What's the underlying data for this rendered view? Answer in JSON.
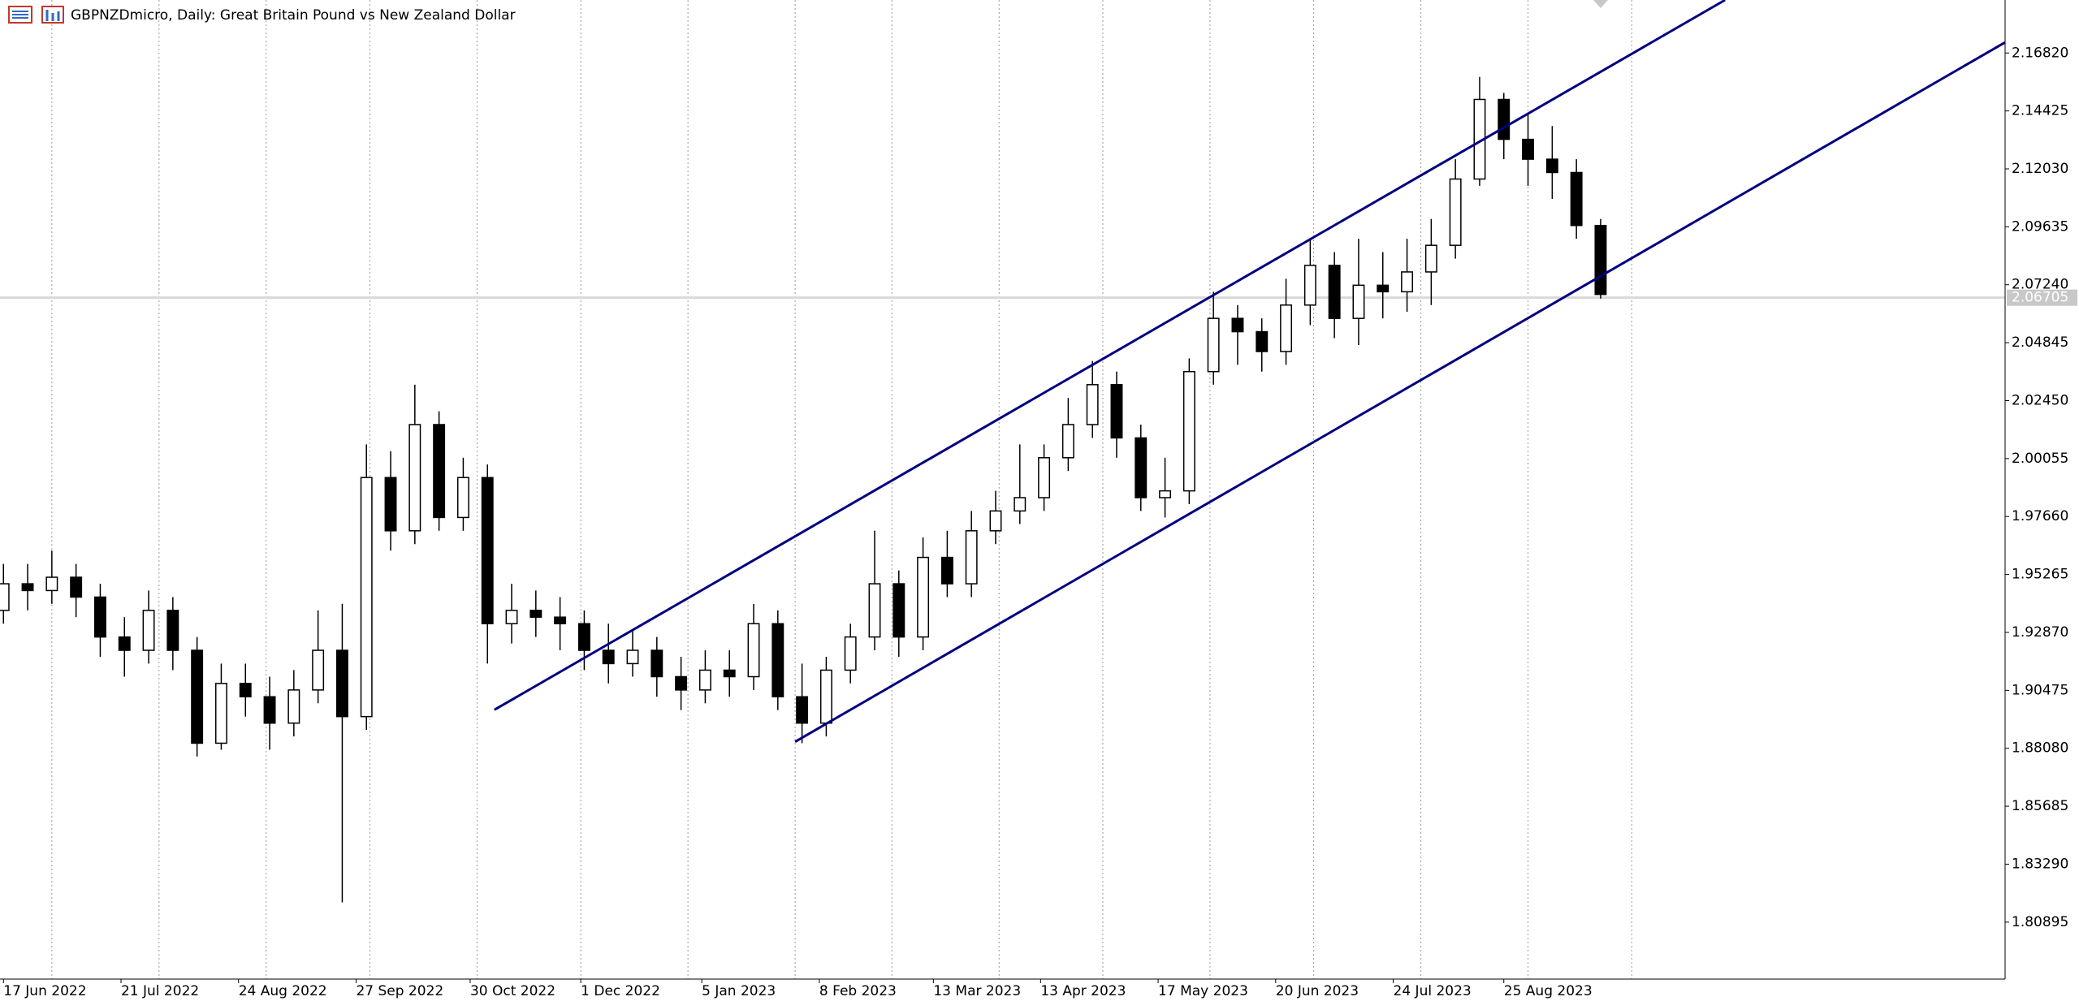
{
  "chart_data": {
    "type": "candlestick",
    "title": "GBPNZDmicro, Daily:  Great Britain Pound vs New Zealand Dollar",
    "x": [
      "2022-06-17",
      "2022-06-24",
      "2022-07-01",
      "2022-07-08",
      "2022-07-15",
      "2022-07-22",
      "2022-07-29",
      "2022-08-05",
      "2022-08-12",
      "2022-08-19",
      "2022-08-26",
      "2022-09-02",
      "2022-09-09",
      "2022-09-16",
      "2022-09-23",
      "2022-09-30",
      "2022-10-07",
      "2022-10-14",
      "2022-10-21",
      "2022-10-28",
      "2022-11-04",
      "2022-11-11",
      "2022-11-18",
      "2022-11-25",
      "2022-12-02",
      "2022-12-09",
      "2022-12-16",
      "2022-12-23",
      "2022-12-30",
      "2023-01-06",
      "2023-01-13",
      "2023-01-20",
      "2023-01-27",
      "2023-02-03",
      "2023-02-10",
      "2023-02-17",
      "2023-02-24",
      "2023-03-03",
      "2023-03-10",
      "2023-03-17",
      "2023-03-24",
      "2023-03-31",
      "2023-04-07",
      "2023-04-14",
      "2023-04-21",
      "2023-04-28",
      "2023-05-05",
      "2023-05-12",
      "2023-05-19",
      "2023-05-26",
      "2023-06-02",
      "2023-06-09",
      "2023-06-16",
      "2023-06-23",
      "2023-06-30",
      "2023-07-07",
      "2023-07-14",
      "2023-07-21",
      "2023-07-28",
      "2023-08-04",
      "2023-08-11",
      "2023-08-18",
      "2023-08-25",
      "2023-09-01",
      "2023-09-08",
      "2023-09-15",
      "2023-09-22"
    ],
    "open": [
      1.9378,
      1.9488,
      1.946,
      1.9515,
      1.9433,
      1.9268,
      1.9213,
      1.9378,
      1.9213,
      1.8829,
      1.9076,
      1.9021,
      1.8912,
      1.9049,
      1.9213,
      1.8939,
      1.9927,
      1.9707,
      2.0146,
      1.9762,
      1.9927,
      1.9323,
      1.9378,
      1.935,
      1.9323,
      1.9213,
      1.9158,
      1.9213,
      1.9104,
      1.9049,
      1.9131,
      1.9104,
      1.9323,
      1.9021,
      1.8912,
      1.9131,
      1.9268,
      1.9488,
      1.9268,
      1.9597,
      1.9488,
      1.9707,
      1.9789,
      1.9844,
      2.0009,
      2.0146,
      2.0311,
      2.0091,
      1.9844,
      1.9872,
      2.0365,
      2.0585,
      2.053,
      2.0448,
      2.064,
      2.0804,
      2.0585,
      2.0722,
      2.0695,
      2.0777,
      2.0887,
      2.1161,
      2.149,
      2.1325,
      2.1243,
      2.1188,
      2.0969
    ],
    "high": [
      1.957,
      1.957,
      1.9625,
      1.957,
      1.9488,
      1.935,
      1.946,
      1.9433,
      1.9268,
      1.9158,
      1.9158,
      1.9104,
      1.9131,
      1.9378,
      1.9405,
      2.0064,
      2.0036,
      2.0311,
      2.0201,
      2.0009,
      1.9981,
      1.9488,
      1.946,
      1.9433,
      1.9378,
      1.9323,
      1.9296,
      1.9268,
      1.9186,
      1.9213,
      1.9213,
      1.9405,
      1.9378,
      1.9158,
      1.9186,
      1.9323,
      1.9707,
      1.9543,
      1.968,
      1.9707,
      1.9789,
      1.9872,
      2.0064,
      2.0064,
      2.0256,
      2.0409,
      2.0365,
      2.0146,
      2.0009,
      2.042,
      2.0695,
      2.064,
      2.0585,
      2.0749,
      2.0914,
      2.0859,
      2.0914,
      2.0859,
      2.0914,
      2.0996,
      2.1243,
      2.1583,
      2.1517,
      2.1435,
      2.138,
      2.1243,
      2.0996
    ],
    "low": [
      1.9323,
      1.9378,
      1.9405,
      1.935,
      1.9186,
      1.9104,
      1.9158,
      1.9131,
      1.8774,
      1.8802,
      1.8939,
      1.8802,
      1.8857,
      1.8994,
      1.8171,
      1.8884,
      1.9625,
      1.9652,
      1.9707,
      1.9707,
      1.9158,
      1.9241,
      1.9268,
      1.9213,
      1.9131,
      1.9076,
      1.9104,
      1.9021,
      1.8966,
      1.8994,
      1.9021,
      1.9049,
      1.8966,
      1.8829,
      1.8857,
      1.9076,
      1.9213,
      1.9186,
      1.9213,
      1.9433,
      1.9433,
      1.9652,
      1.9735,
      1.9789,
      1.9954,
      2.0091,
      2.0009,
      1.9789,
      1.9762,
      1.9817,
      2.0311,
      2.0393,
      2.0365,
      2.0393,
      2.0557,
      2.0503,
      2.0475,
      2.0585,
      2.0612,
      2.064,
      2.0832,
      2.1133,
      2.1243,
      2.1133,
      2.1079,
      2.0914,
      2.0667
    ],
    "close": [
      1.9488,
      1.946,
      1.9515,
      1.9433,
      1.9268,
      1.9213,
      1.9378,
      1.9213,
      1.8829,
      1.9076,
      1.9021,
      1.8912,
      1.9049,
      1.9213,
      1.8939,
      1.9927,
      1.9707,
      2.0146,
      1.9762,
      1.9927,
      1.9323,
      1.9378,
      1.935,
      1.9323,
      1.9213,
      1.9158,
      1.9213,
      1.9104,
      1.9049,
      1.9131,
      1.9104,
      1.9323,
      1.9021,
      1.8912,
      1.9131,
      1.9268,
      1.9488,
      1.9268,
      1.9597,
      1.9488,
      1.9707,
      1.9789,
      1.9844,
      2.0009,
      2.0146,
      2.0311,
      2.0091,
      1.9844,
      1.9872,
      2.0365,
      2.0585,
      2.053,
      2.0448,
      2.064,
      2.0804,
      2.0585,
      2.0722,
      2.0695,
      2.0777,
      2.0887,
      2.1161,
      2.149,
      2.1325,
      2.1243,
      2.1188,
      2.0969,
      2.0684
    ],
    "bull_color": "#ffffff",
    "bear_color": "#000000",
    "xlim": [
      "2022-06-16",
      "2024-01-17"
    ],
    "xticks": [
      {
        "value": "2022-06-17",
        "label": "17 Jun 2022"
      },
      {
        "value": "2022-07-21",
        "label": "21 Jul 2022"
      },
      {
        "value": "2022-08-24",
        "label": "24 Aug 2022"
      },
      {
        "value": "2022-09-27",
        "label": "27 Sep 2022"
      },
      {
        "value": "2022-10-30",
        "label": "30 Oct 2022"
      },
      {
        "value": "2022-12-01",
        "label": "1 Dec 2022"
      },
      {
        "value": "2023-01-05",
        "label": "5 Jan 2023"
      },
      {
        "value": "2023-02-08",
        "label": "8 Feb 2023"
      },
      {
        "value": "2023-03-13",
        "label": "13 Mar 2023"
      },
      {
        "value": "2023-04-13",
        "label": "13 Apr 2023"
      },
      {
        "value": "2023-05-17",
        "label": "17 May 2023"
      },
      {
        "value": "2023-06-20",
        "label": "20 Jun 2023"
      },
      {
        "value": "2023-07-24",
        "label": "24 Jul 2023"
      },
      {
        "value": "2023-08-25",
        "label": "25 Aug 2023"
      }
    ],
    "period_separators": [
      "2022-07-01",
      "2022-08-01",
      "2022-09-01",
      "2022-10-01",
      "2022-11-01",
      "2022-12-01",
      "2023-01-01",
      "2023-02-01",
      "2023-03-01",
      "2023-04-01",
      "2023-05-01",
      "2023-06-01",
      "2023-07-01",
      "2023-08-01",
      "2023-09-01",
      "2023-10-01"
    ],
    "ylim": [
      1.7854,
      2.1901
    ],
    "yticks": [
      {
        "value": 2.1682,
        "label": "2.16820"
      },
      {
        "value": 2.14425,
        "label": "2.14425"
      },
      {
        "value": 2.1203,
        "label": "2.12030"
      },
      {
        "value": 2.09635,
        "label": "2.09635"
      },
      {
        "value": 2.0724,
        "label": "2.07240"
      },
      {
        "value": 2.04845,
        "label": "2.04845"
      },
      {
        "value": 2.0245,
        "label": "2.02450"
      },
      {
        "value": 2.00055,
        "label": "2.00055"
      },
      {
        "value": 1.9766,
        "label": "1.97660"
      },
      {
        "value": 1.95265,
        "label": "1.95265"
      },
      {
        "value": 1.9287,
        "label": "1.92870"
      },
      {
        "value": 1.90475,
        "label": "1.90475"
      },
      {
        "value": 1.8808,
        "label": "1.88080"
      },
      {
        "value": 1.85685,
        "label": "1.85685"
      },
      {
        "value": 1.8329,
        "label": "1.83290"
      },
      {
        "value": 1.80895,
        "label": "1.80895"
      }
    ],
    "last_price": 2.06705,
    "trendlines": [
      {
        "x": [
          "2022-11-06",
          "2023-10-28"
        ],
        "y": [
          1.8967,
          2.1901
        ],
        "color": "#000080"
      },
      {
        "x": [
          "2023-02-01",
          "2024-01-17"
        ],
        "y": [
          1.8835,
          2.1726
        ],
        "color": "#000080"
      }
    ]
  }
}
